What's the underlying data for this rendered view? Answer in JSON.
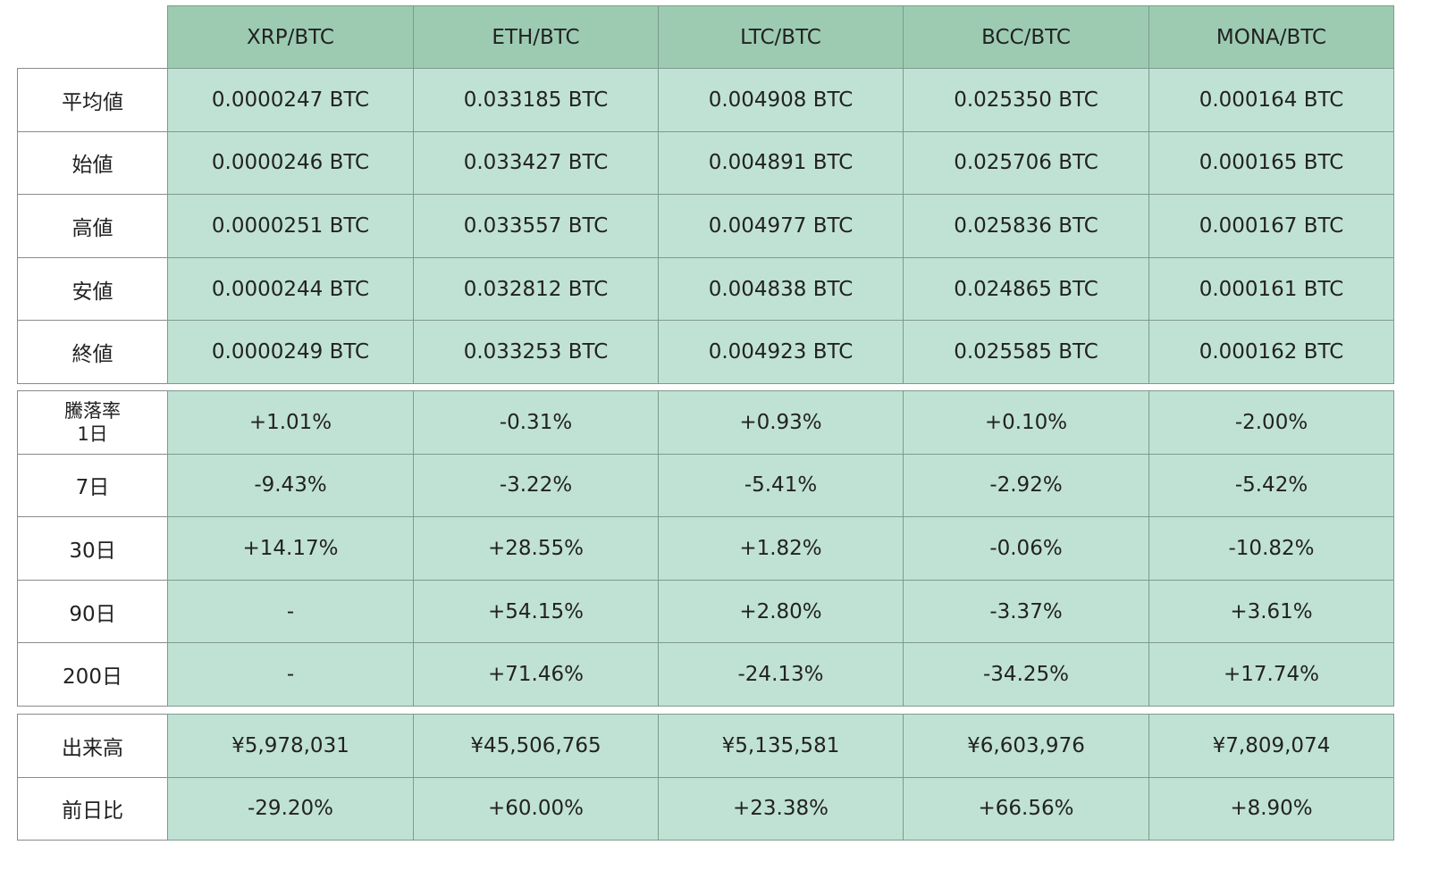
{
  "table": {
    "columns": [
      "XRP/BTC",
      "ETH/BTC",
      "LTC/BTC",
      "BCC/BTC",
      "MONA/BTC"
    ],
    "sections": [
      {
        "rows": [
          {
            "label": "平均値",
            "cells": [
              "0.0000247 BTC",
              "0.033185 BTC",
              "0.004908 BTC",
              "0.025350 BTC",
              "0.000164 BTC"
            ]
          },
          {
            "label": "始値",
            "cells": [
              "0.0000246 BTC",
              "0.033427 BTC",
              "0.004891 BTC",
              "0.025706 BTC",
              "0.000165 BTC"
            ]
          },
          {
            "label": "高値",
            "cells": [
              "0.0000251 BTC",
              "0.033557 BTC",
              "0.004977 BTC",
              "0.025836 BTC",
              "0.000167 BTC"
            ]
          },
          {
            "label": "安値",
            "cells": [
              "0.0000244 BTC",
              "0.032812 BTC",
              "0.004838 BTC",
              "0.024865 BTC",
              "0.000161 BTC"
            ]
          },
          {
            "label": "終値",
            "cells": [
              "0.0000249 BTC",
              "0.033253 BTC",
              "0.004923 BTC",
              "0.025585 BTC",
              "0.000162 BTC"
            ]
          }
        ]
      },
      {
        "rows": [
          {
            "label": "騰落率\n1日",
            "cells": [
              "+1.01%",
              "-0.31%",
              "+0.93%",
              "+0.10%",
              "-2.00%"
            ]
          },
          {
            "label": "7日",
            "cells": [
              "-9.43%",
              "-3.22%",
              "-5.41%",
              "-2.92%",
              "-5.42%"
            ]
          },
          {
            "label": "30日",
            "cells": [
              "+14.17%",
              "+28.55%",
              "+1.82%",
              "-0.06%",
              "-10.82%"
            ]
          },
          {
            "label": "90日",
            "cells": [
              "-",
              "+54.15%",
              "+2.80%",
              "-3.37%",
              "+3.61%"
            ]
          },
          {
            "label": "200日",
            "cells": [
              "-",
              "+71.46%",
              "-24.13%",
              "-34.25%",
              "+17.74%"
            ]
          }
        ]
      },
      {
        "rows": [
          {
            "label": "出来高",
            "cells": [
              "¥5,978,031",
              "¥45,506,765",
              "¥5,135,581",
              "¥6,603,976",
              "¥7,809,074"
            ]
          },
          {
            "label": "前日比",
            "cells": [
              "-29.20%",
              "+60.00%",
              "+23.38%",
              "+66.56%",
              "+8.90%"
            ]
          }
        ]
      }
    ]
  }
}
